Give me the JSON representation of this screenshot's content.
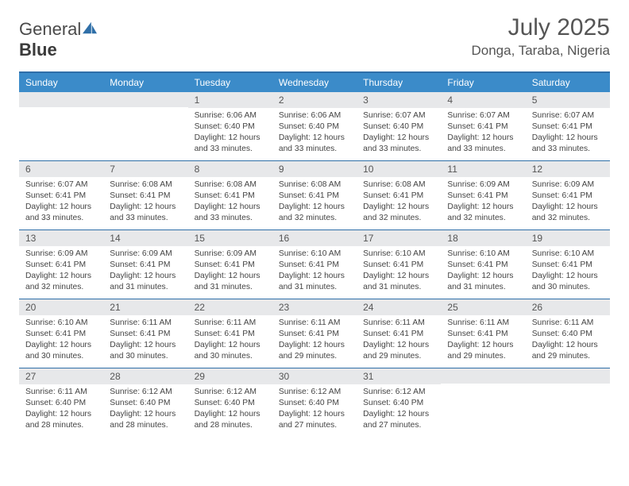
{
  "logo": {
    "text_a": "General",
    "text_b": "Blue"
  },
  "header": {
    "month_title": "July 2025",
    "location": "Donga, Taraba, Nigeria"
  },
  "colors": {
    "header_bar": "#3b8bc9",
    "row_divider": "#2f6fa8",
    "daynum_bg": "#e7e8ea",
    "text": "#444444",
    "logo_accent": "#2f6fa8"
  },
  "day_labels": [
    "Sunday",
    "Monday",
    "Tuesday",
    "Wednesday",
    "Thursday",
    "Friday",
    "Saturday"
  ],
  "weeks": [
    [
      {
        "num": "",
        "lines": []
      },
      {
        "num": "",
        "lines": []
      },
      {
        "num": "1",
        "lines": [
          "Sunrise: 6:06 AM",
          "Sunset: 6:40 PM",
          "Daylight: 12 hours",
          "and 33 minutes."
        ]
      },
      {
        "num": "2",
        "lines": [
          "Sunrise: 6:06 AM",
          "Sunset: 6:40 PM",
          "Daylight: 12 hours",
          "and 33 minutes."
        ]
      },
      {
        "num": "3",
        "lines": [
          "Sunrise: 6:07 AM",
          "Sunset: 6:40 PM",
          "Daylight: 12 hours",
          "and 33 minutes."
        ]
      },
      {
        "num": "4",
        "lines": [
          "Sunrise: 6:07 AM",
          "Sunset: 6:41 PM",
          "Daylight: 12 hours",
          "and 33 minutes."
        ]
      },
      {
        "num": "5",
        "lines": [
          "Sunrise: 6:07 AM",
          "Sunset: 6:41 PM",
          "Daylight: 12 hours",
          "and 33 minutes."
        ]
      }
    ],
    [
      {
        "num": "6",
        "lines": [
          "Sunrise: 6:07 AM",
          "Sunset: 6:41 PM",
          "Daylight: 12 hours",
          "and 33 minutes."
        ]
      },
      {
        "num": "7",
        "lines": [
          "Sunrise: 6:08 AM",
          "Sunset: 6:41 PM",
          "Daylight: 12 hours",
          "and 33 minutes."
        ]
      },
      {
        "num": "8",
        "lines": [
          "Sunrise: 6:08 AM",
          "Sunset: 6:41 PM",
          "Daylight: 12 hours",
          "and 33 minutes."
        ]
      },
      {
        "num": "9",
        "lines": [
          "Sunrise: 6:08 AM",
          "Sunset: 6:41 PM",
          "Daylight: 12 hours",
          "and 32 minutes."
        ]
      },
      {
        "num": "10",
        "lines": [
          "Sunrise: 6:08 AM",
          "Sunset: 6:41 PM",
          "Daylight: 12 hours",
          "and 32 minutes."
        ]
      },
      {
        "num": "11",
        "lines": [
          "Sunrise: 6:09 AM",
          "Sunset: 6:41 PM",
          "Daylight: 12 hours",
          "and 32 minutes."
        ]
      },
      {
        "num": "12",
        "lines": [
          "Sunrise: 6:09 AM",
          "Sunset: 6:41 PM",
          "Daylight: 12 hours",
          "and 32 minutes."
        ]
      }
    ],
    [
      {
        "num": "13",
        "lines": [
          "Sunrise: 6:09 AM",
          "Sunset: 6:41 PM",
          "Daylight: 12 hours",
          "and 32 minutes."
        ]
      },
      {
        "num": "14",
        "lines": [
          "Sunrise: 6:09 AM",
          "Sunset: 6:41 PM",
          "Daylight: 12 hours",
          "and 31 minutes."
        ]
      },
      {
        "num": "15",
        "lines": [
          "Sunrise: 6:09 AM",
          "Sunset: 6:41 PM",
          "Daylight: 12 hours",
          "and 31 minutes."
        ]
      },
      {
        "num": "16",
        "lines": [
          "Sunrise: 6:10 AM",
          "Sunset: 6:41 PM",
          "Daylight: 12 hours",
          "and 31 minutes."
        ]
      },
      {
        "num": "17",
        "lines": [
          "Sunrise: 6:10 AM",
          "Sunset: 6:41 PM",
          "Daylight: 12 hours",
          "and 31 minutes."
        ]
      },
      {
        "num": "18",
        "lines": [
          "Sunrise: 6:10 AM",
          "Sunset: 6:41 PM",
          "Daylight: 12 hours",
          "and 31 minutes."
        ]
      },
      {
        "num": "19",
        "lines": [
          "Sunrise: 6:10 AM",
          "Sunset: 6:41 PM",
          "Daylight: 12 hours",
          "and 30 minutes."
        ]
      }
    ],
    [
      {
        "num": "20",
        "lines": [
          "Sunrise: 6:10 AM",
          "Sunset: 6:41 PM",
          "Daylight: 12 hours",
          "and 30 minutes."
        ]
      },
      {
        "num": "21",
        "lines": [
          "Sunrise: 6:11 AM",
          "Sunset: 6:41 PM",
          "Daylight: 12 hours",
          "and 30 minutes."
        ]
      },
      {
        "num": "22",
        "lines": [
          "Sunrise: 6:11 AM",
          "Sunset: 6:41 PM",
          "Daylight: 12 hours",
          "and 30 minutes."
        ]
      },
      {
        "num": "23",
        "lines": [
          "Sunrise: 6:11 AM",
          "Sunset: 6:41 PM",
          "Daylight: 12 hours",
          "and 29 minutes."
        ]
      },
      {
        "num": "24",
        "lines": [
          "Sunrise: 6:11 AM",
          "Sunset: 6:41 PM",
          "Daylight: 12 hours",
          "and 29 minutes."
        ]
      },
      {
        "num": "25",
        "lines": [
          "Sunrise: 6:11 AM",
          "Sunset: 6:41 PM",
          "Daylight: 12 hours",
          "and 29 minutes."
        ]
      },
      {
        "num": "26",
        "lines": [
          "Sunrise: 6:11 AM",
          "Sunset: 6:40 PM",
          "Daylight: 12 hours",
          "and 29 minutes."
        ]
      }
    ],
    [
      {
        "num": "27",
        "lines": [
          "Sunrise: 6:11 AM",
          "Sunset: 6:40 PM",
          "Daylight: 12 hours",
          "and 28 minutes."
        ]
      },
      {
        "num": "28",
        "lines": [
          "Sunrise: 6:12 AM",
          "Sunset: 6:40 PM",
          "Daylight: 12 hours",
          "and 28 minutes."
        ]
      },
      {
        "num": "29",
        "lines": [
          "Sunrise: 6:12 AM",
          "Sunset: 6:40 PM",
          "Daylight: 12 hours",
          "and 28 minutes."
        ]
      },
      {
        "num": "30",
        "lines": [
          "Sunrise: 6:12 AM",
          "Sunset: 6:40 PM",
          "Daylight: 12 hours",
          "and 27 minutes."
        ]
      },
      {
        "num": "31",
        "lines": [
          "Sunrise: 6:12 AM",
          "Sunset: 6:40 PM",
          "Daylight: 12 hours",
          "and 27 minutes."
        ]
      },
      {
        "num": "",
        "lines": []
      },
      {
        "num": "",
        "lines": []
      }
    ]
  ]
}
